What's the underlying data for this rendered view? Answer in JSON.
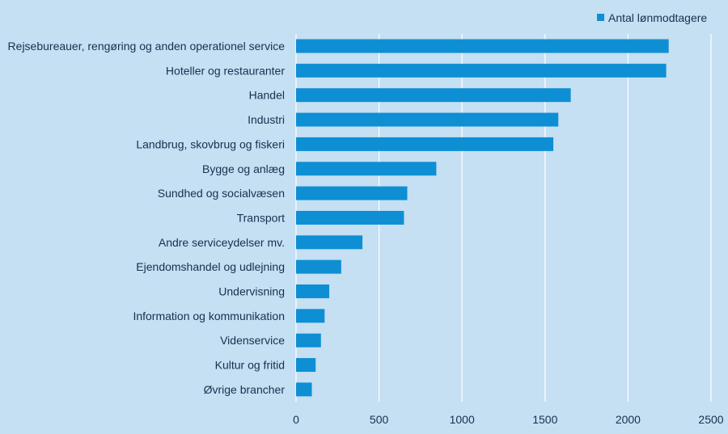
{
  "chart_data": {
    "type": "bar",
    "orientation": "horizontal",
    "categories": [
      "Rejsebureauer, rengøring og anden operationel service",
      "Hoteller og restauranter",
      "Handel",
      "Industri",
      "Landbrug, skovbrug og fiskeri",
      "Bygge og anlæg",
      "Sundhed og socialvæsen",
      "Transport",
      "Andre serviceydelser  mv.",
      "Ejendomshandel og udlejning",
      "Undervisning",
      "Information og kommunikation",
      "Videnservice",
      "Kultur og fritid",
      "Øvrige brancher"
    ],
    "series": [
      {
        "name": "Antal lønmodtagere",
        "values": [
          2245,
          2230,
          1655,
          1580,
          1550,
          845,
          670,
          650,
          400,
          272,
          200,
          172,
          150,
          118,
          95
        ]
      }
    ],
    "xlim": [
      0,
      2500
    ],
    "xticks": [
      "0",
      "500",
      "1000",
      "1500",
      "2000",
      "2500"
    ],
    "grid": true,
    "legend_position": "top-right",
    "bar_color": "#0e8fd4"
  }
}
